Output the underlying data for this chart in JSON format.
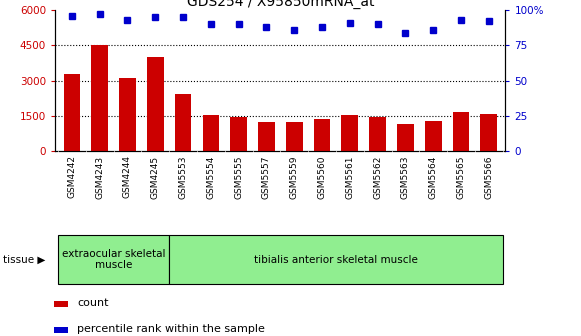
{
  "title": "GDS254 / X95850mRNA_at",
  "categories": [
    "GSM4242",
    "GSM4243",
    "GSM4244",
    "GSM4245",
    "GSM5553",
    "GSM5554",
    "GSM5555",
    "GSM5557",
    "GSM5559",
    "GSM5560",
    "GSM5561",
    "GSM5562",
    "GSM5563",
    "GSM5564",
    "GSM5565",
    "GSM5566"
  ],
  "bar_values": [
    3300,
    4500,
    3100,
    4000,
    2450,
    1520,
    1470,
    1260,
    1240,
    1380,
    1560,
    1470,
    1160,
    1280,
    1680,
    1600
  ],
  "dot_values": [
    96,
    97,
    93,
    95,
    95,
    90,
    90,
    88,
    86,
    88,
    91,
    90,
    84,
    86,
    93,
    92
  ],
  "bar_color": "#cc0000",
  "dot_color": "#0000cc",
  "ylim_left": [
    0,
    6000
  ],
  "ylim_right": [
    0,
    100
  ],
  "yticks_left": [
    0,
    1500,
    3000,
    4500,
    6000
  ],
  "yticks_right": [
    0,
    25,
    50,
    75,
    100
  ],
  "ytick_right_labels": [
    "0",
    "25",
    "50",
    "75",
    "100%"
  ],
  "tissue_groups": [
    {
      "label": "extraocular skeletal\nmuscle",
      "start": 0,
      "end": 4
    },
    {
      "label": "tibialis anterior skeletal muscle",
      "start": 4,
      "end": 16
    }
  ],
  "tissue_label": "tissue ▶",
  "legend_bar_label": "count",
  "legend_dot_label": "percentile rank within the sample",
  "bar_color_legend": "#cc0000",
  "dot_color_legend": "#0000cc",
  "bg_color": "#ffffff",
  "plot_bg_color": "#ffffff",
  "tick_area_bg": "#d3d3d3",
  "tissue_color": "#90ee90",
  "tick_label_color_left": "#cc0000",
  "tick_label_color_right": "#0000cc",
  "grid_dotted_values": [
    1500,
    3000,
    4500
  ],
  "figsize": [
    5.81,
    3.36
  ],
  "dpi": 100
}
